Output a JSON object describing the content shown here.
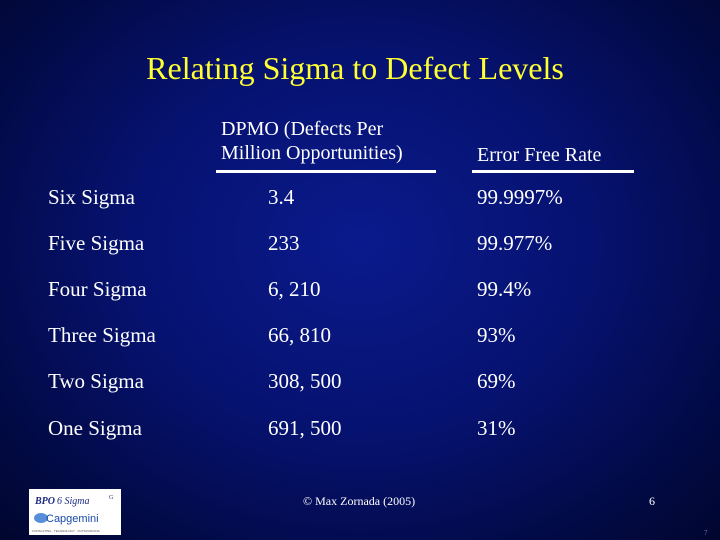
{
  "slide": {
    "title": "Relating Sigma to Defect Levels",
    "headers": {
      "dpmo_line1": "DPMO (Defects Per",
      "dpmo_line2": "Million Opportunities)",
      "error_free_rate": "Error Free Rate"
    },
    "rows": [
      {
        "level": "Six Sigma",
        "dpmo": "3.4",
        "rate": "99.9997%"
      },
      {
        "level": "Five Sigma",
        "dpmo": "233",
        "rate": "99.977%"
      },
      {
        "level": "Four Sigma",
        "dpmo": "6, 210",
        "rate": "99.4%"
      },
      {
        "level": "Three Sigma",
        "dpmo": "66, 810",
        "rate": "93%"
      },
      {
        "level": "Two Sigma",
        "dpmo": "308, 500",
        "rate": "69%"
      },
      {
        "level": "One Sigma",
        "dpmo": "691, 500",
        "rate": "31%"
      }
    ]
  },
  "footer": {
    "copyright": "© Max Zornada (2005)",
    "page_number": "6",
    "corner_mark": "7"
  },
  "logo": {
    "line1_a": "BPO",
    "line1_b": "6 Sigma",
    "line1_mark": "G",
    "line2": "Capgemini",
    "tagline": "CONSULTING . TECHNOLOGY . OUTSOURCING"
  },
  "colors": {
    "title": "#ffff33",
    "background": "#061270",
    "text": "#ffffff",
    "logo_blue": "#1a4aa8"
  }
}
